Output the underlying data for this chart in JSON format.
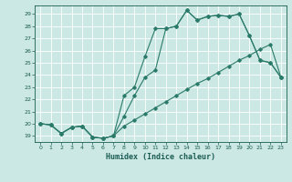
{
  "xlabel": "Humidex (Indice chaleur)",
  "bg_color": "#cce8e4",
  "grid_color": "#ffffff",
  "line_color": "#2a7a6a",
  "xlim": [
    -0.5,
    23.5
  ],
  "ylim": [
    18.5,
    29.7
  ],
  "yticks": [
    19,
    20,
    21,
    22,
    23,
    24,
    25,
    26,
    27,
    28,
    29
  ],
  "xticks": [
    0,
    1,
    2,
    3,
    4,
    5,
    6,
    7,
    8,
    9,
    10,
    11,
    12,
    13,
    14,
    15,
    16,
    17,
    18,
    19,
    20,
    21,
    22,
    23
  ],
  "font_color": "#1a5c52",
  "s1_x": [
    0,
    1,
    2,
    3,
    4,
    5,
    6,
    7,
    8,
    9,
    10,
    11,
    12,
    13,
    14,
    15,
    16,
    17,
    18,
    19,
    20,
    21,
    22,
    23
  ],
  "s1_y": [
    20.0,
    19.9,
    19.2,
    19.7,
    19.8,
    18.9,
    18.8,
    19.0,
    19.8,
    20.3,
    20.8,
    21.3,
    21.8,
    22.3,
    22.8,
    23.3,
    23.7,
    24.2,
    24.7,
    25.2,
    25.6,
    26.1,
    26.5,
    23.8
  ],
  "s2_x": [
    0,
    1,
    2,
    3,
    4,
    5,
    6,
    7,
    8,
    9,
    10,
    11,
    12,
    13,
    14,
    15,
    16,
    17,
    18,
    19,
    20,
    21,
    22,
    23
  ],
  "s2_y": [
    20.0,
    19.9,
    19.2,
    19.7,
    19.8,
    18.9,
    18.8,
    19.0,
    22.3,
    23.0,
    25.5,
    27.8,
    27.8,
    28.0,
    29.3,
    28.5,
    28.8,
    28.9,
    28.8,
    29.0,
    27.2,
    25.2,
    25.0,
    23.8
  ],
  "s3_x": [
    0,
    1,
    2,
    3,
    4,
    5,
    6,
    7,
    8,
    9,
    10,
    11,
    12,
    13,
    14,
    15,
    16,
    17,
    18,
    19,
    20,
    21,
    22,
    23
  ],
  "s3_y": [
    20.0,
    19.9,
    19.2,
    19.7,
    19.8,
    18.9,
    18.8,
    19.0,
    20.6,
    22.3,
    23.8,
    24.4,
    27.8,
    28.0,
    29.3,
    28.5,
    28.8,
    28.9,
    28.8,
    29.0,
    27.2,
    25.2,
    25.0,
    23.8
  ]
}
